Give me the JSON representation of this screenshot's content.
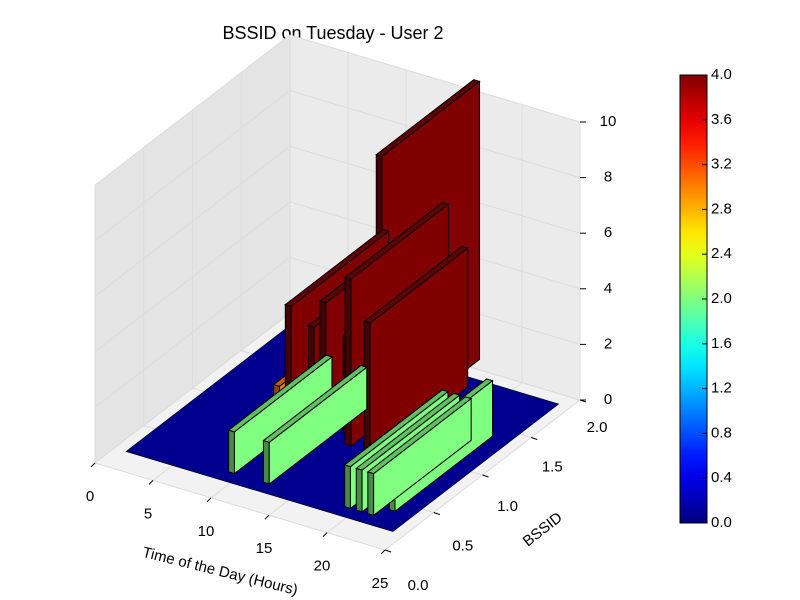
{
  "chart_data": {
    "type": "bar3d",
    "title": "BSSID on Tuesday - User 2",
    "xlabel": "Time of the Day (Hours)",
    "ylabel": "BSSID",
    "xlim": [
      0,
      25
    ],
    "xticks": [
      0,
      5,
      10,
      15,
      20,
      25
    ],
    "ylim": [
      0,
      2
    ],
    "yticks": [
      {
        "value": 0,
        "label": "0.0"
      },
      {
        "value": 0.5,
        "label": "0.5"
      },
      {
        "value": 1,
        "label": "1.0"
      },
      {
        "value": 1.5,
        "label": "1.5"
      },
      {
        "value": 2,
        "label": "2.0"
      }
    ],
    "zlim": [
      0,
      10
    ],
    "zticks": [
      0,
      2,
      4,
      6,
      8,
      10
    ],
    "colormap": "jet",
    "clim": [
      0,
      4
    ],
    "cticks": [
      {
        "value": 0,
        "label": "0.0"
      },
      {
        "value": 0.4,
        "label": "0.4"
      },
      {
        "value": 0.8,
        "label": "0.8"
      },
      {
        "value": 1.2,
        "label": "1.2"
      },
      {
        "value": 1.6,
        "label": "1.6"
      },
      {
        "value": 2,
        "label": "2.0"
      },
      {
        "value": 2.4,
        "label": "2.4"
      },
      {
        "value": 2.8,
        "label": "2.8"
      },
      {
        "value": 3.2,
        "label": "3.2"
      },
      {
        "value": 3.6,
        "label": "3.6"
      },
      {
        "value": 4,
        "label": "4.0"
      }
    ],
    "bar_width": 0.5,
    "bar_depth": 1,
    "x": [
      7,
      8,
      9,
      10,
      11,
      12,
      13,
      14,
      15,
      16.5,
      19,
      20,
      21,
      22
    ],
    "y": [
      1,
      1,
      0.3,
      1,
      1,
      0.3,
      1,
      0.9,
      1.1,
      0.8,
      0.3,
      0.3,
      0.3,
      0.4
    ],
    "z": [
      1,
      4,
      1.5,
      3.5,
      4.5,
      1.5,
      3.5,
      6,
      10,
      5,
      1.5,
      1.5,
      1.5,
      2
    ],
    "c": [
      3,
      4,
      2,
      4,
      4,
      2,
      4,
      4,
      4,
      4,
      2,
      2,
      2,
      2
    ],
    "grid": true
  }
}
